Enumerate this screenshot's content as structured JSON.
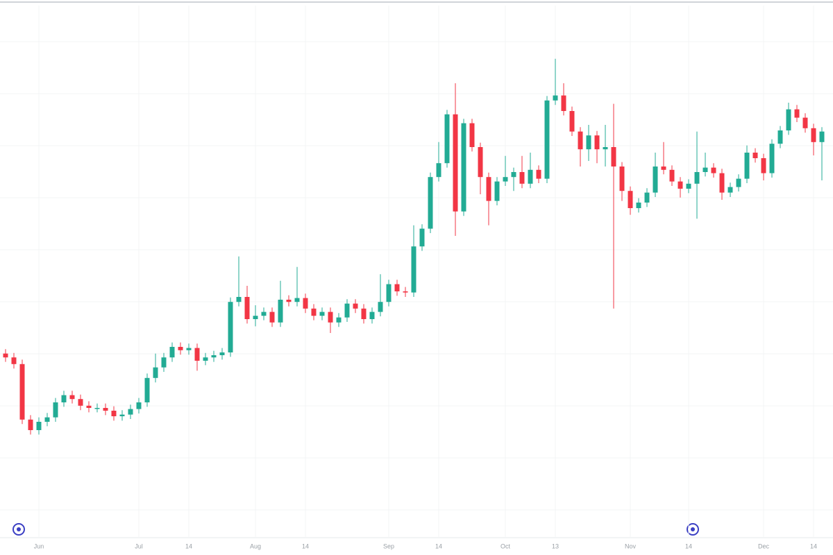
{
  "chart_data": {
    "type": "candlestick",
    "categories": [
      null,
      null,
      null,
      null,
      "Jun",
      null,
      null,
      null,
      null,
      null,
      null,
      null,
      null,
      null,
      null,
      null,
      "Jul",
      null,
      null,
      null,
      null,
      null,
      "14",
      null,
      null,
      null,
      null,
      null,
      null,
      null,
      "Aug",
      null,
      null,
      null,
      null,
      null,
      "14",
      null,
      null,
      null,
      null,
      null,
      null,
      null,
      null,
      null,
      "Sep",
      null,
      null,
      null,
      null,
      null,
      "14",
      null,
      null,
      null,
      null,
      null,
      null,
      null,
      "Oct",
      null,
      null,
      null,
      null,
      null,
      "13",
      null,
      null,
      null,
      null,
      null,
      null,
      null,
      null,
      "Nov",
      null,
      null,
      null,
      null,
      null,
      null,
      "14",
      null,
      null,
      null,
      null,
      null,
      null,
      null,
      null,
      "Dec",
      null,
      null,
      null,
      null,
      null,
      "14",
      null
    ],
    "open": [
      36.3,
      35.6,
      34.4,
      24.4,
      22.5,
      24,
      24.8,
      27.5,
      28.8,
      28.1,
      26.9,
      26.5,
      26.5,
      26,
      25,
      25.3,
      26.3,
      27.5,
      31.9,
      33.8,
      35.6,
      37.5,
      36.9,
      37.3,
      35,
      35.6,
      36,
      36.5,
      45.6,
      46.5,
      42.5,
      43.1,
      43.8,
      41.9,
      46,
      45.6,
      46.3,
      44.4,
      43.1,
      43.8,
      41.9,
      42.8,
      45.3,
      44.4,
      42.5,
      43.8,
      45.6,
      48.8,
      47.5,
      47.3,
      55.6,
      58.8,
      68.1,
      70.6,
      79.4,
      61.9,
      77.8,
      73.5,
      68.1,
      63.8,
      67.3,
      68.1,
      69,
      66.9,
      69.4,
      67.8,
      81.9,
      82.8,
      80,
      76.3,
      73.1,
      75.6,
      73.1,
      73.5,
      70,
      65.6,
      62.5,
      63.5,
      65.3,
      70,
      69.4,
      67.3,
      66,
      66.9,
      69,
      69.8,
      68.8,
      65.3,
      66.3,
      67.8,
      72.5,
      71.5,
      68.8,
      74.1,
      76.5,
      80.3,
      78.8,
      76.9,
      74.4
    ],
    "high": [
      37.1,
      36.4,
      35.2,
      25.2,
      24.8,
      25.6,
      28.3,
      29.6,
      29.6,
      28.9,
      27.7,
      27.3,
      27.3,
      26.8,
      26.1,
      27.1,
      28.3,
      32.7,
      36.3,
      36.4,
      38.3,
      38.3,
      38.1,
      38.1,
      36.4,
      36.8,
      37.3,
      46.4,
      53.8,
      48.5,
      45,
      44.6,
      44.6,
      49.4,
      46.8,
      51.9,
      47.1,
      45.2,
      44.6,
      44.6,
      43.6,
      46.1,
      46.1,
      45.2,
      44.6,
      50.6,
      49.6,
      49.6,
      48.3,
      59.4,
      59.6,
      68.9,
      74.4,
      80.2,
      85,
      78.6,
      78.6,
      74.3,
      68.9,
      68.1,
      71.9,
      69.8,
      71.9,
      72.5,
      70.2,
      82.7,
      89.4,
      85,
      80.8,
      77.1,
      77.5,
      76.4,
      77.5,
      81.3,
      70.8,
      66.4,
      64.3,
      66.1,
      72.5,
      74.4,
      70.2,
      68.1,
      67.7,
      76.3,
      72.5,
      70.6,
      69.6,
      67.1,
      68.6,
      73.8,
      73.3,
      72.3,
      74.9,
      77.3,
      81.5,
      81.1,
      79.6,
      77.7,
      77.1
    ],
    "low": [
      34.8,
      33.6,
      23.6,
      21.7,
      21.7,
      23.2,
      24,
      26.7,
      27.3,
      26.1,
      25.7,
      25.7,
      25.2,
      24.2,
      24.2,
      24.5,
      25.5,
      26.7,
      31.1,
      33,
      34.8,
      36.1,
      36.1,
      33.2,
      34.2,
      34.8,
      35.2,
      35.7,
      44.8,
      41.7,
      41.2,
      42.3,
      41.1,
      41.1,
      44.8,
      44.8,
      43.6,
      42.3,
      42.3,
      40,
      41.1,
      42,
      43.6,
      41.7,
      41.7,
      43,
      44.8,
      46.7,
      46.5,
      46.5,
      54.8,
      58,
      67.3,
      69.8,
      57.5,
      61.1,
      72.7,
      65,
      59.4,
      63,
      66.5,
      65.6,
      66.1,
      66.1,
      67,
      67,
      81.1,
      79.2,
      75.5,
      70,
      71,
      70.6,
      70,
      44.4,
      63.8,
      61.3,
      61.7,
      62.7,
      64.5,
      68.6,
      66.5,
      64.4,
      65.2,
      60.6,
      68.2,
      68,
      64,
      64.5,
      65.5,
      67,
      70.7,
      67.5,
      68,
      73.3,
      75.7,
      78,
      76.1,
      72,
      67.5
    ],
    "close": [
      35.6,
      34.4,
      24.4,
      22.5,
      24,
      24.8,
      27.5,
      28.8,
      28.1,
      26.9,
      26.5,
      26.5,
      26,
      25,
      25.3,
      26.3,
      27.5,
      31.9,
      33.8,
      35.6,
      37.5,
      36.9,
      37.3,
      35,
      35.6,
      36,
      36.5,
      45.6,
      46.5,
      42.5,
      43.1,
      43.8,
      41.9,
      46,
      45.6,
      46.3,
      44.4,
      43.1,
      43.8,
      41.9,
      42.8,
      45.3,
      44.4,
      42.5,
      43.8,
      45.6,
      48.8,
      47.5,
      47.3,
      55.6,
      58.8,
      68.1,
      70.6,
      79.4,
      61.9,
      77.8,
      73.5,
      68.1,
      63.8,
      67.3,
      68.1,
      69,
      66.9,
      69.4,
      67.8,
      81.9,
      82.8,
      80,
      76.3,
      73.1,
      75.6,
      73.1,
      73.5,
      70,
      65.6,
      62.5,
      63.5,
      65.3,
      70,
      69.4,
      67.3,
      66,
      66.9,
      69,
      69.8,
      68.8,
      65.3,
      66.3,
      67.8,
      72.5,
      71.5,
      68.8,
      74.1,
      76.5,
      80.3,
      78.8,
      76.9,
      74.4,
      76.3
    ],
    "up_color": "#22ab94",
    "down_color": "#f23645",
    "ylim": [
      0,
      100
    ],
    "grid": true
  }
}
